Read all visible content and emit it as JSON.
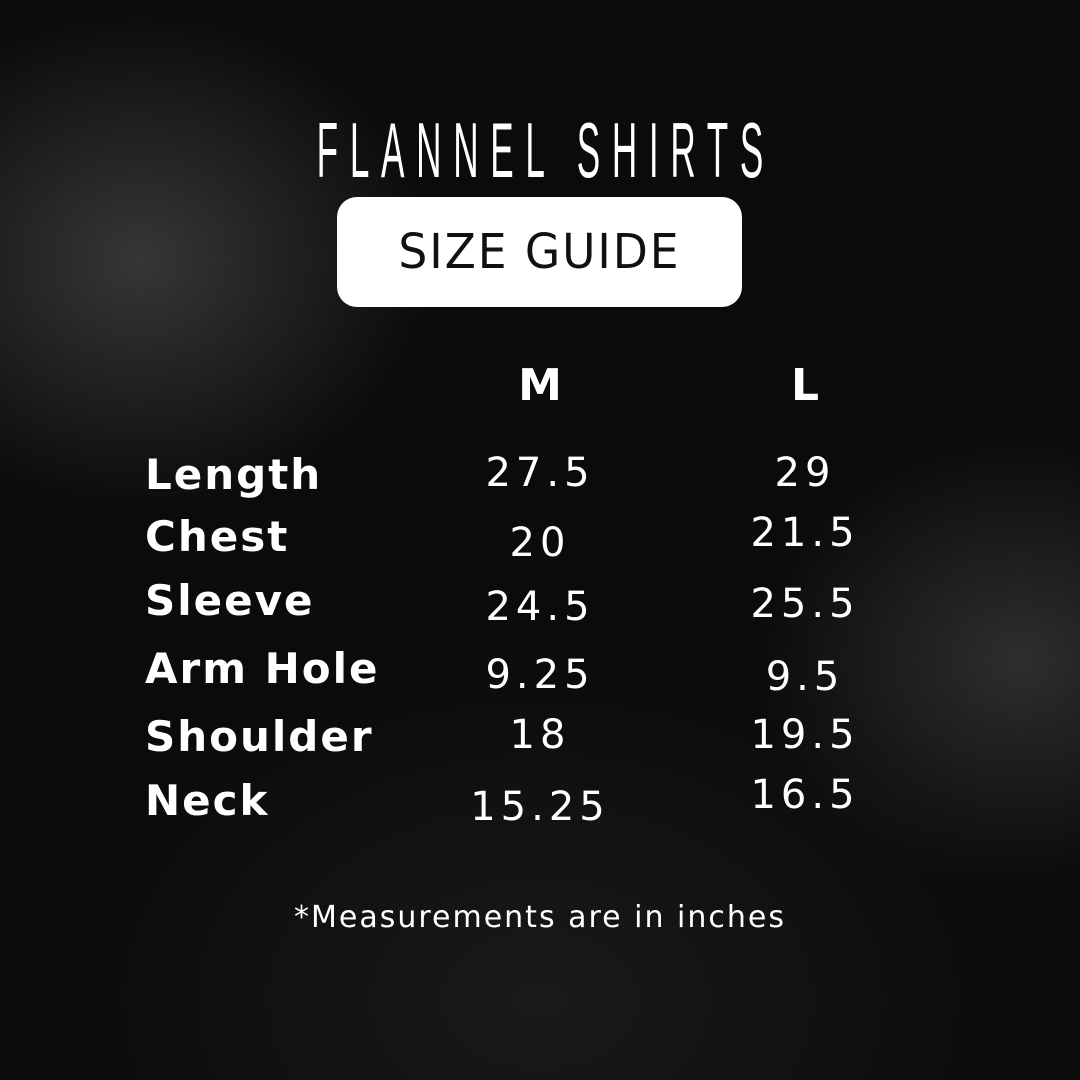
{
  "title": "FLANNEL SHIRTS",
  "subtitle": "SIZE GUIDE",
  "columns": [
    "M",
    "L"
  ],
  "rows": [
    {
      "label": "Length",
      "m": "27.5",
      "l": "29"
    },
    {
      "label": "Chest",
      "m": "20",
      "l": "21.5"
    },
    {
      "label": "Sleeve",
      "m": "24.5",
      "l": "25.5"
    },
    {
      "label": "Arm Hole",
      "m": "9.25",
      "l": "9.5"
    },
    {
      "label": "Shoulder",
      "m": "18",
      "l": "19.5"
    },
    {
      "label": "Neck",
      "m": "15.25",
      "l": "16.5"
    }
  ],
  "footnote": "*Measurements are in inches",
  "colors": {
    "background": "#0b0b0b",
    "text": "#ffffff",
    "pill": "#ffffff",
    "pill_text": "#111111"
  }
}
